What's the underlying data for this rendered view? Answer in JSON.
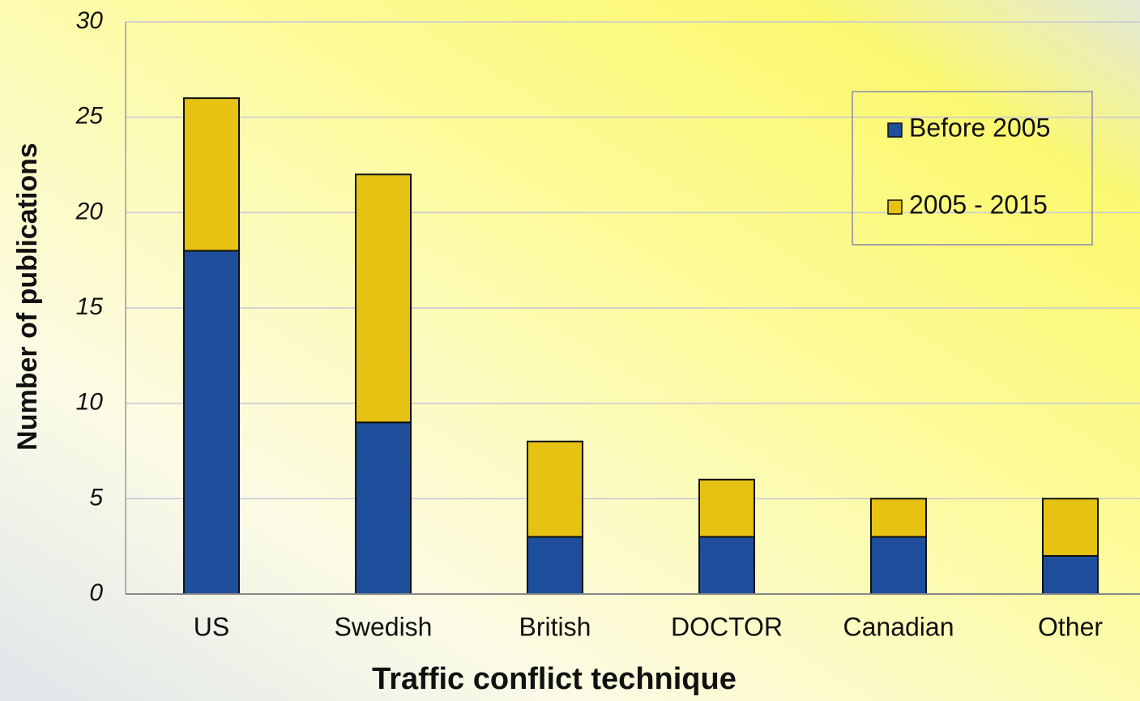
{
  "chart_data": {
    "type": "stacked_bar",
    "xlabel": "Traffic conflict technique",
    "ylabel": "Number of publications",
    "categories": [
      "US",
      "Swedish",
      "British",
      "DOCTOR",
      "Canadian",
      "Other"
    ],
    "series": [
      {
        "name": "Before 2005",
        "color": "#1f4e9c",
        "values": [
          18,
          9,
          3,
          3,
          3,
          2
        ]
      },
      {
        "name": "2005 - 2015",
        "color": "#e6c213",
        "values": [
          8,
          13,
          5,
          3,
          2,
          3
        ]
      }
    ],
    "ylim": [
      0,
      30
    ],
    "yticks": [
      0,
      5,
      10,
      15,
      20,
      25,
      30
    ],
    "grid": true,
    "legend": "upper right"
  }
}
